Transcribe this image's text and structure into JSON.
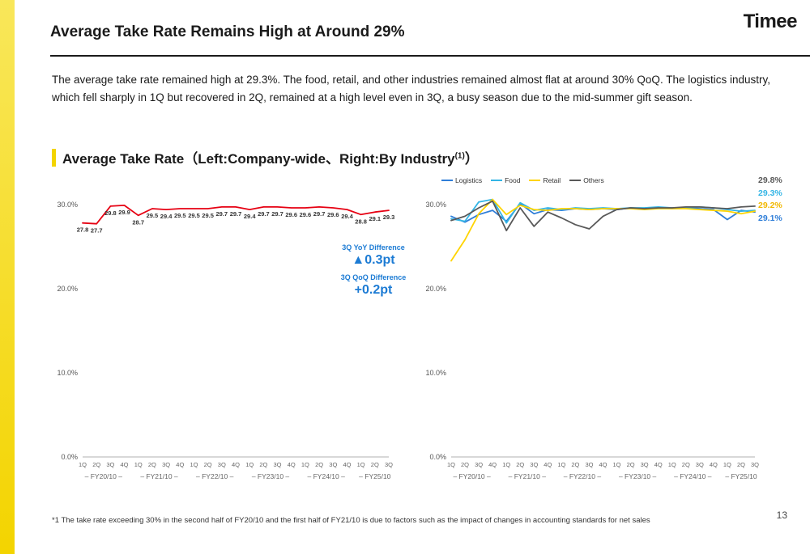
{
  "slide": {
    "logo": "Timee",
    "title": "Average Take Rate Remains High at Around 29%",
    "body": "The average take rate remained high at 29.3%. The food, retail, and other industries remained almost flat at around 30% QoQ. The logistics industry, which fell sharply in 1Q but recovered in 2Q, remained at a high level even in 3Q, a busy season due to the mid-summer gift season.",
    "section_title_main": "Average Take Rate（Left:Company-wide、Right:By Industry",
    "section_title_sup": "(1)",
    "section_title_end": "）",
    "footnote": "*1 The take rate exceeding 30% in the second half of FY20/10 and the first half of FY21/10 is due to factors such as the impact of changes in accounting standards for net sales",
    "page_number": "13"
  },
  "annotations": {
    "yoy_label": "3Q YoY Difference",
    "yoy_value": "▲0.3pt",
    "qoq_label": "3Q QoQ Difference",
    "qoq_value": "+0.2pt",
    "color": "#1c7bd4"
  },
  "chart_data": [
    {
      "type": "line",
      "title": "Average take rate (company-wide)",
      "ylim": [
        0,
        32
      ],
      "y_ticks": [
        {
          "v": 30,
          "label": "30.0%"
        },
        {
          "v": 20,
          "label": "20.0%"
        },
        {
          "v": 10,
          "label": "10.0%"
        },
        {
          "v": 0,
          "label": "0.0%"
        }
      ],
      "quarters": [
        "1Q",
        "2Q",
        "3Q",
        "4Q",
        "1Q",
        "2Q",
        "3Q",
        "4Q",
        "1Q",
        "2Q",
        "3Q",
        "4Q",
        "1Q",
        "2Q",
        "3Q",
        "4Q",
        "1Q",
        "2Q",
        "3Q",
        "4Q",
        "1Q",
        "2Q",
        "3Q"
      ],
      "groups": [
        {
          "label": "– FY20/10 –",
          "count": 4
        },
        {
          "label": "– FY21/10 –",
          "count": 4
        },
        {
          "label": "– FY22/10 –",
          "count": 4
        },
        {
          "label": "– FY23/10 –",
          "count": 4
        },
        {
          "label": "– FY24/10 –",
          "count": 4
        },
        {
          "label": "– FY25/10",
          "count": 3
        }
      ],
      "legend": false,
      "series": [
        {
          "name": "Company-wide take rate",
          "color": "#e60012",
          "show_labels": true,
          "values": [
            27.8,
            27.7,
            29.8,
            29.9,
            28.7,
            29.5,
            29.4,
            29.5,
            29.5,
            29.5,
            29.7,
            29.7,
            29.4,
            29.7,
            29.7,
            29.6,
            29.6,
            29.7,
            29.6,
            29.4,
            28.8,
            29.1,
            29.3
          ]
        }
      ],
      "end_labels": []
    },
    {
      "type": "line",
      "title": "Average take rate by industry",
      "ylim": [
        0,
        32
      ],
      "y_ticks": [
        {
          "v": 30,
          "label": "30.0%"
        },
        {
          "v": 20,
          "label": "20.0%"
        },
        {
          "v": 10,
          "label": "10.0%"
        },
        {
          "v": 0,
          "label": "0.0%"
        }
      ],
      "quarters": [
        "1Q",
        "2Q",
        "3Q",
        "4Q",
        "1Q",
        "2Q",
        "3Q",
        "4Q",
        "1Q",
        "2Q",
        "3Q",
        "4Q",
        "1Q",
        "2Q",
        "3Q",
        "4Q",
        "1Q",
        "2Q",
        "3Q",
        "4Q",
        "1Q",
        "2Q",
        "3Q"
      ],
      "groups": [
        {
          "label": "– FY20/10 –",
          "count": 4
        },
        {
          "label": "– FY21/10 –",
          "count": 4
        },
        {
          "label": "– FY22/10 –",
          "count": 4
        },
        {
          "label": "– FY23/10 –",
          "count": 4
        },
        {
          "label": "– FY24/10 –",
          "count": 4
        },
        {
          "label": "– FY25/10",
          "count": 3
        }
      ],
      "legend": true,
      "series": [
        {
          "name": "Logistics",
          "color": "#2f7ed8",
          "show_labels": false,
          "values": [
            28.6,
            27.9,
            28.8,
            29.3,
            28.0,
            30.1,
            28.9,
            29.4,
            29.3,
            29.5,
            29.4,
            29.5,
            29.4,
            29.6,
            29.5,
            29.6,
            29.5,
            29.6,
            29.5,
            29.4,
            28.2,
            29.3,
            29.1
          ]
        },
        {
          "name": "Food",
          "color": "#33b5e5",
          "show_labels": false,
          "values": [
            28.3,
            28.0,
            30.3,
            30.6,
            27.8,
            30.2,
            29.3,
            29.6,
            29.4,
            29.6,
            29.5,
            29.6,
            29.5,
            29.6,
            29.6,
            29.7,
            29.6,
            29.6,
            29.7,
            29.6,
            29.4,
            29.2,
            29.3
          ]
        },
        {
          "name": "Retail",
          "color": "#ffd400",
          "show_labels": false,
          "values": [
            23.3,
            25.8,
            28.9,
            30.6,
            28.8,
            29.9,
            29.4,
            29.3,
            29.5,
            29.5,
            29.4,
            29.5,
            29.5,
            29.5,
            29.4,
            29.5,
            29.5,
            29.5,
            29.4,
            29.3,
            29.2,
            28.9,
            29.2
          ]
        },
        {
          "name": "Others",
          "color": "#595959",
          "show_labels": false,
          "values": [
            28.1,
            28.6,
            29.6,
            30.4,
            26.9,
            29.6,
            27.4,
            29.1,
            28.4,
            27.6,
            27.1,
            28.6,
            29.4,
            29.6,
            29.5,
            29.6,
            29.6,
            29.7,
            29.7,
            29.6,
            29.5,
            29.7,
            29.8
          ]
        }
      ],
      "end_labels": [
        {
          "text": "29.8%",
          "color": "#595959",
          "series": "Others"
        },
        {
          "text": "29.3%",
          "color": "#33b5e5",
          "series": "Food"
        },
        {
          "text": "29.2%",
          "color": "#f2b800",
          "series": "Retail"
        },
        {
          "text": "29.1%",
          "color": "#2f7ed8",
          "series": "Logistics"
        }
      ]
    }
  ]
}
